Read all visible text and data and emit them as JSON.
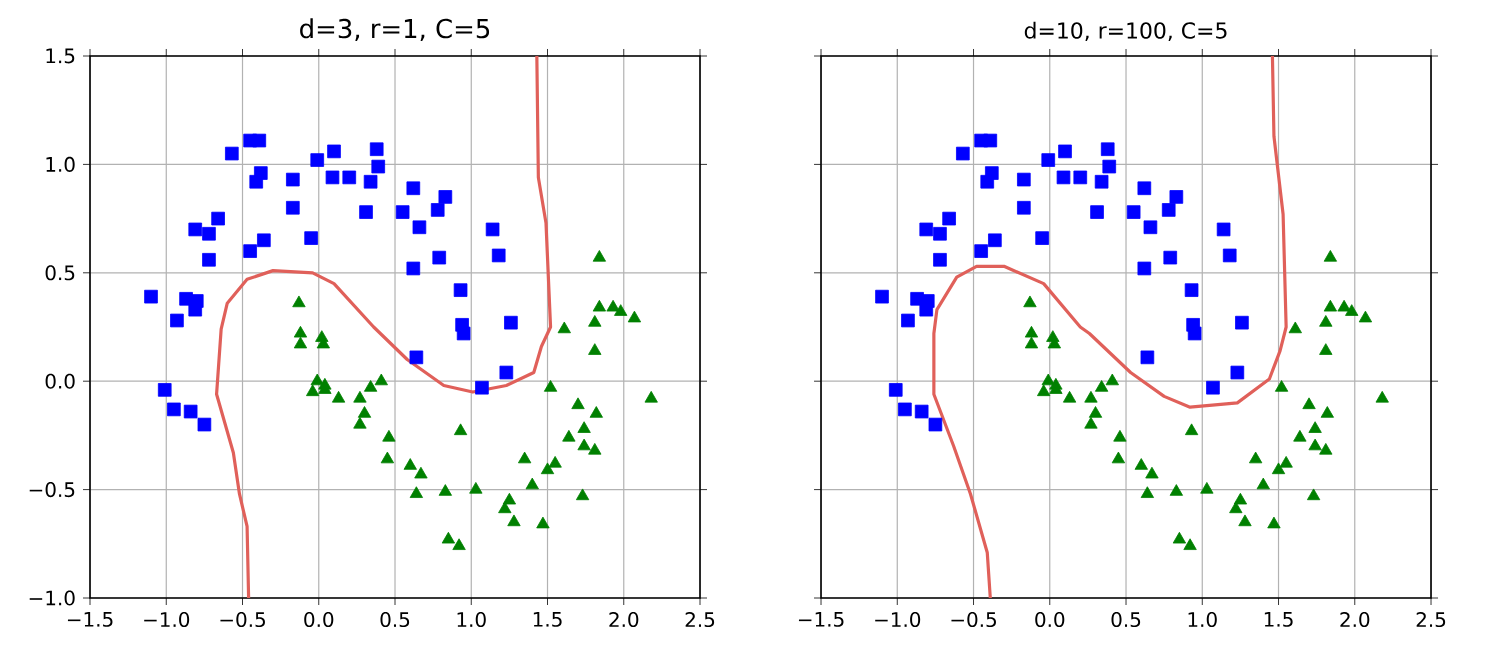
{
  "chart_data": [
    {
      "type": "scatter",
      "title": "d=3, r=1, C=5",
      "xlim": [
        -1.5,
        2.5
      ],
      "ylim": [
        -1.0,
        1.5
      ],
      "xticks": [
        {
          "value": -1.5,
          "label": "−1.5"
        },
        {
          "value": -1.0,
          "label": "−1.0"
        },
        {
          "value": -0.5,
          "label": "−0.5"
        },
        {
          "value": 0,
          "label": "0.0"
        },
        {
          "value": 0.5,
          "label": "0.5"
        },
        {
          "value": 1.0,
          "label": "1.0"
        },
        {
          "value": 1.5,
          "label": "1.5"
        },
        {
          "value": 2.0,
          "label": "2.0"
        },
        {
          "value": 2.5,
          "label": "2.5"
        }
      ],
      "yticks": [
        {
          "value": -1.0,
          "label": "−1.0"
        },
        {
          "value": -0.5,
          "label": "−0.5"
        },
        {
          "value": 0,
          "label": "0.0"
        },
        {
          "value": 0.5,
          "label": "0.5"
        },
        {
          "value": 1.0,
          "label": "1.0"
        },
        {
          "value": 1.5,
          "label": "1.5"
        }
      ],
      "grid": true,
      "series": [
        {
          "color": "#0000ff",
          "marker": "square",
          "x": [
            -0.45,
            -0.39,
            -0.57,
            -0.38,
            -0.41,
            -0.17,
            -0.01,
            0.1,
            0.38,
            0.39,
            0.09,
            0.2,
            0.34,
            0.62,
            0.83,
            0.78,
            0.55,
            0.31,
            -0.17,
            -0.66,
            -0.81,
            -0.72,
            -0.36,
            -0.45,
            -0.05,
            -0.72,
            0.66,
            1.14,
            1.18,
            0.79,
            0.62,
            0.93,
            -1.1,
            -0.87,
            -0.8,
            -0.81,
            0.94,
            1.26,
            0.95,
            0.64,
            1.23,
            1.07,
            -1.01,
            -0.95,
            -0.84,
            -0.75,
            -0.93
          ],
          "values": [
            1.11,
            1.11,
            1.05,
            0.96,
            0.92,
            0.93,
            1.02,
            1.06,
            1.07,
            0.99,
            0.94,
            0.94,
            0.92,
            0.89,
            0.85,
            0.79,
            0.78,
            0.78,
            0.8,
            0.75,
            0.7,
            0.68,
            0.65,
            0.6,
            0.66,
            0.56,
            0.71,
            0.7,
            0.58,
            0.57,
            0.52,
            0.42,
            0.39,
            0.38,
            0.37,
            0.33,
            0.26,
            0.27,
            0.22,
            0.11,
            0.04,
            -0.03,
            -0.04,
            -0.13,
            -0.14,
            -0.2,
            0.28
          ]
        },
        {
          "color": "#008000",
          "marker": "triangle",
          "x": [
            1.84,
            -0.13,
            1.84,
            1.93,
            1.98,
            2.07,
            1.81,
            1.61,
            -0.12,
            -0.12,
            0.02,
            0.03,
            1.81,
            -0.01,
            0.04,
            -0.04,
            0.04,
            0.13,
            0.34,
            0.41,
            0.27,
            0.3,
            0.27,
            0.46,
            0.45,
            0.6,
            0.67,
            0.64,
            0.83,
            1.03,
            0.93,
            1.52,
            1.7,
            1.82,
            1.74,
            1.64,
            1.74,
            1.81,
            2.18,
            1.35,
            1.55,
            1.5,
            1.4,
            1.25,
            1.22,
            1.28,
            1.47,
            1.73,
            0.85,
            0.92
          ],
          "values": [
            0.57,
            0.36,
            0.34,
            0.34,
            0.32,
            0.29,
            0.27,
            0.24,
            0.22,
            0.17,
            0.2,
            0.17,
            0.14,
            0.0,
            -0.02,
            -0.05,
            -0.04,
            -0.08,
            -0.03,
            0.0,
            -0.08,
            -0.15,
            -0.2,
            -0.26,
            -0.36,
            -0.39,
            -0.43,
            -0.52,
            -0.51,
            -0.5,
            -0.23,
            -0.03,
            -0.11,
            -0.15,
            -0.22,
            -0.26,
            -0.3,
            -0.32,
            -0.08,
            -0.36,
            -0.38,
            -0.41,
            -0.48,
            -0.55,
            -0.59,
            -0.65,
            -0.66,
            -0.53,
            -0.73,
            -0.76
          ]
        },
        {
          "type": "line",
          "color": "#e0605a",
          "marker": "none",
          "x": [
            1.43,
            1.44,
            1.49,
            1.52,
            1.46,
            1.41,
            1.23,
            1.01,
            0.82,
            0.58,
            0.36,
            0.1,
            -0.04,
            -0.3,
            -0.47,
            -0.6,
            -0.64,
            -0.67,
            -0.56,
            -0.52,
            -0.47,
            -0.46
          ],
          "values": [
            1.5,
            0.94,
            0.73,
            0.25,
            0.16,
            0.04,
            -0.02,
            -0.05,
            -0.02,
            0.1,
            0.25,
            0.45,
            0.5,
            0.51,
            0.47,
            0.36,
            0.24,
            -0.06,
            -0.33,
            -0.52,
            -0.67,
            -1.0
          ]
        }
      ]
    },
    {
      "type": "scatter",
      "title": "d=10, r=100, C=5",
      "xlim": [
        -1.5,
        2.5
      ],
      "ylim": [
        -1.0,
        1.5
      ],
      "tick_labels": "x",
      "xticks": [
        {
          "value": -1.5,
          "label": "−1.5"
        },
        {
          "value": -1.0,
          "label": "−1.0"
        },
        {
          "value": -0.5,
          "label": "−0.5"
        },
        {
          "value": 0,
          "label": "0.0"
        },
        {
          "value": 0.5,
          "label": "0.5"
        },
        {
          "value": 1.0,
          "label": "1.0"
        },
        {
          "value": 1.5,
          "label": "1.5"
        },
        {
          "value": 2.0,
          "label": "2.0"
        },
        {
          "value": 2.5,
          "label": "2.5"
        }
      ],
      "yticks": [
        {
          "value": -1.0,
          "label": null
        },
        {
          "value": -0.5,
          "label": null
        },
        {
          "value": 0,
          "label": null
        },
        {
          "value": 0.5,
          "label": null
        },
        {
          "value": 1.0,
          "label": null
        },
        {
          "value": 1.5,
          "label": null
        }
      ],
      "grid": true,
      "series": [
        {
          "color": "#0000ff",
          "marker": "square",
          "x": [
            -0.45,
            -0.39,
            -0.57,
            -0.38,
            -0.41,
            -0.17,
            -0.01,
            0.1,
            0.38,
            0.39,
            0.09,
            0.2,
            0.34,
            0.62,
            0.83,
            0.78,
            0.55,
            0.31,
            -0.17,
            -0.66,
            -0.81,
            -0.72,
            -0.36,
            -0.45,
            -0.05,
            -0.72,
            0.66,
            1.14,
            1.18,
            0.79,
            0.62,
            0.93,
            -1.1,
            -0.87,
            -0.8,
            -0.81,
            0.94,
            1.26,
            0.95,
            0.64,
            1.23,
            1.07,
            -1.01,
            -0.95,
            -0.84,
            -0.75,
            -0.93
          ],
          "values": [
            1.11,
            1.11,
            1.05,
            0.96,
            0.92,
            0.93,
            1.02,
            1.06,
            1.07,
            0.99,
            0.94,
            0.94,
            0.92,
            0.89,
            0.85,
            0.79,
            0.78,
            0.78,
            0.8,
            0.75,
            0.7,
            0.68,
            0.65,
            0.6,
            0.66,
            0.56,
            0.71,
            0.7,
            0.58,
            0.57,
            0.52,
            0.42,
            0.39,
            0.38,
            0.37,
            0.33,
            0.26,
            0.27,
            0.22,
            0.11,
            0.04,
            -0.03,
            -0.04,
            -0.13,
            -0.14,
            -0.2,
            0.28
          ]
        },
        {
          "color": "#008000",
          "marker": "triangle",
          "x": [
            1.84,
            -0.13,
            1.84,
            1.93,
            1.98,
            2.07,
            1.81,
            1.61,
            -0.12,
            -0.12,
            0.02,
            0.03,
            1.81,
            -0.01,
            0.04,
            -0.04,
            0.04,
            0.13,
            0.34,
            0.41,
            0.27,
            0.3,
            0.27,
            0.46,
            0.45,
            0.6,
            0.67,
            0.64,
            0.83,
            1.03,
            0.93,
            1.52,
            1.7,
            1.82,
            1.74,
            1.64,
            1.74,
            1.81,
            2.18,
            1.35,
            1.55,
            1.5,
            1.4,
            1.25,
            1.22,
            1.28,
            1.47,
            1.73,
            0.85,
            0.92
          ],
          "values": [
            0.57,
            0.36,
            0.34,
            0.34,
            0.32,
            0.29,
            0.27,
            0.24,
            0.22,
            0.17,
            0.2,
            0.17,
            0.14,
            0.0,
            -0.02,
            -0.05,
            -0.04,
            -0.08,
            -0.03,
            0.0,
            -0.08,
            -0.15,
            -0.2,
            -0.26,
            -0.36,
            -0.39,
            -0.43,
            -0.52,
            -0.51,
            -0.5,
            -0.23,
            -0.03,
            -0.11,
            -0.15,
            -0.22,
            -0.26,
            -0.3,
            -0.32,
            -0.08,
            -0.36,
            -0.38,
            -0.41,
            -0.48,
            -0.55,
            -0.59,
            -0.65,
            -0.66,
            -0.53,
            -0.73,
            -0.76
          ]
        },
        {
          "type": "line",
          "color": "#e0605a",
          "marker": "none",
          "x": [
            1.46,
            1.47,
            1.53,
            1.55,
            1.51,
            1.44,
            1.23,
            0.92,
            0.75,
            0.53,
            0.26,
            0.2,
            -0.04,
            -0.3,
            -0.48,
            -0.61,
            -0.74,
            -0.76,
            -0.76,
            -0.63,
            -0.52,
            -0.41,
            -0.39
          ],
          "values": [
            1.5,
            1.13,
            0.77,
            0.25,
            0.14,
            0.01,
            -0.1,
            -0.12,
            -0.07,
            0.04,
            0.22,
            0.25,
            0.45,
            0.53,
            0.53,
            0.48,
            0.33,
            0.22,
            -0.06,
            -0.3,
            -0.52,
            -0.79,
            -1.0
          ]
        }
      ]
    }
  ]
}
